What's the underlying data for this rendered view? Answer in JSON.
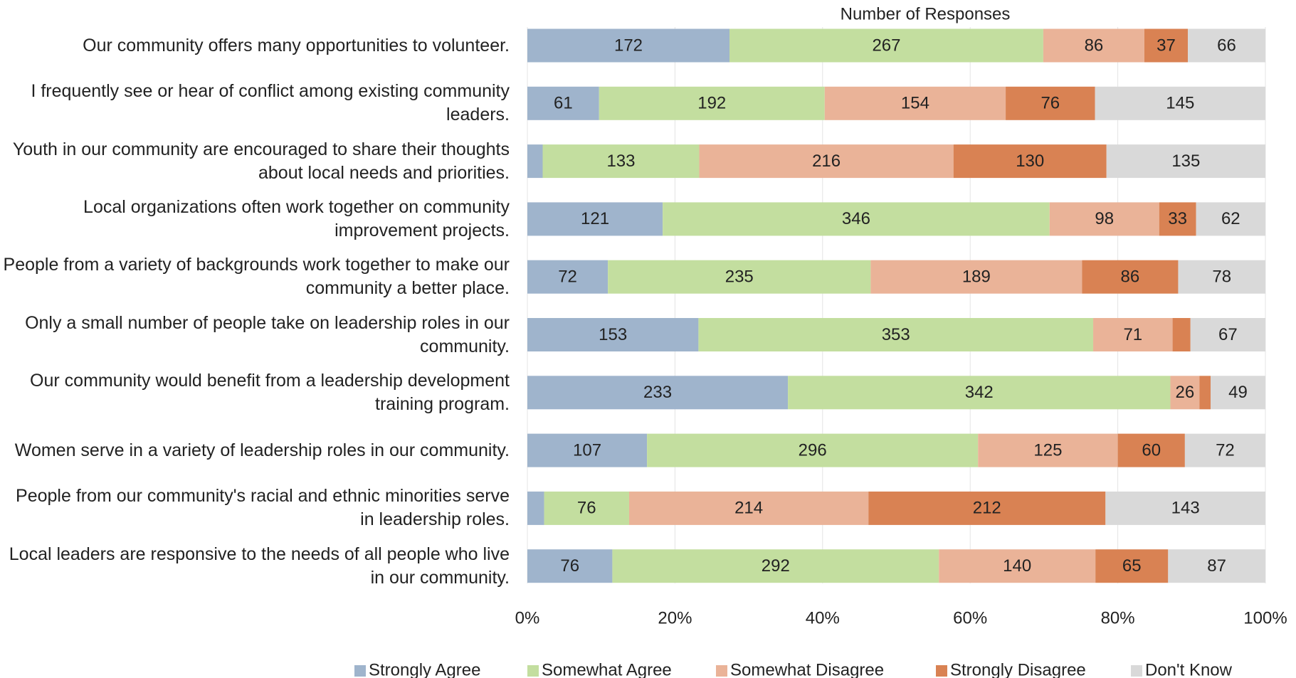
{
  "chart_data": {
    "type": "stacked_bar_100",
    "orientation": "horizontal",
    "x_label": "Number of  Responses",
    "categories": [
      "Our community offers many opportunities to volunteer.",
      "I frequently see or hear of conflict among existing community leaders.",
      "Youth in our community are encouraged to share their thoughts about local needs and priorities.",
      "Local organizations  often work together on community improvement projects.",
      "People from a variety of backgrounds work together to make our community a better place.",
      "Only a small number of people take on leadership roles in our community.",
      "Our community would benefit from a leadership development training program.",
      "Women serve in a variety of leadership roles in our community.",
      "People from our community's racial and ethnic minorities serve in leadership roles.",
      "Local leaders are responsive to the needs of all people who live in our community."
    ],
    "series": [
      {
        "name": "Strongly Agree",
        "color": "#9fb4cc",
        "values": [
          172,
          61,
          13,
          121,
          72,
          153,
          233,
          107,
          15,
          76
        ]
      },
      {
        "name": "Somewhat Agree",
        "color": "#c3de9f",
        "values": [
          267,
          192,
          133,
          346,
          235,
          353,
          342,
          296,
          76,
          292
        ]
      },
      {
        "name": "Somewhat Disagree",
        "color": "#eab398",
        "values": [
          86,
          154,
          216,
          98,
          189,
          71,
          26,
          125,
          214,
          140
        ]
      },
      {
        "name": "Strongly Disagree",
        "color": "#d98253",
        "values": [
          37,
          76,
          130,
          33,
          86,
          16,
          10,
          60,
          212,
          65
        ]
      },
      {
        "name": "Don't Know",
        "color": "#d9d9d9",
        "values": [
          66,
          145,
          135,
          62,
          78,
          67,
          49,
          72,
          143,
          87
        ]
      }
    ],
    "xlim": [
      0,
      100
    ],
    "xticks": [
      {
        "value": 0,
        "label": "0%"
      },
      {
        "value": 20,
        "label": "20%"
      },
      {
        "value": 40,
        "label": "40%"
      },
      {
        "value": 60,
        "label": "60%"
      },
      {
        "value": 80,
        "label": "80%"
      },
      {
        "value": 100,
        "label": "100%"
      }
    ],
    "grid": true,
    "legend": "bottom"
  }
}
